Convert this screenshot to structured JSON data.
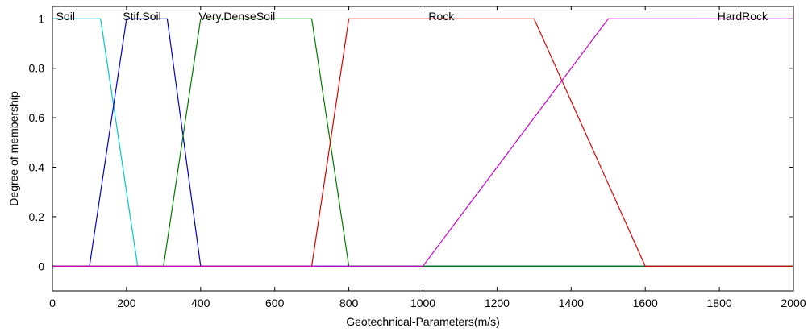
{
  "chart_data": {
    "type": "line",
    "title": "",
    "xlabel": "Geotechnical-Parameters(m/s)",
    "ylabel": "Degree of membership",
    "xlim": [
      0,
      2000
    ],
    "ylim": [
      -0.1,
      1.05
    ],
    "xticks": [
      0,
      200,
      400,
      600,
      800,
      1000,
      1200,
      1400,
      1600,
      1800,
      2000
    ],
    "yticks": [
      0,
      0.2,
      0.4,
      0.6,
      0.8,
      1
    ],
    "grid": false,
    "series": [
      {
        "name": "Soil",
        "color": "#00c8c8",
        "label_x": 10,
        "points": [
          [
            0,
            1
          ],
          [
            130,
            1
          ],
          [
            230,
            0
          ],
          [
            2000,
            0
          ]
        ]
      },
      {
        "name": "Stif.Soil",
        "color": "#0000cc",
        "label_x": 190,
        "points": [
          [
            0,
            0
          ],
          [
            100,
            0
          ],
          [
            200,
            1
          ],
          [
            310,
            1
          ],
          [
            400,
            0
          ],
          [
            2000,
            0
          ]
        ]
      },
      {
        "name": "Very.DenseSoil",
        "color": "#007a00",
        "label_x": 395,
        "points": [
          [
            0,
            0
          ],
          [
            300,
            0
          ],
          [
            400,
            1
          ],
          [
            700,
            1
          ],
          [
            800,
            0
          ],
          [
            2000,
            0
          ]
        ]
      },
      {
        "name": "Rock",
        "color": "#e00000",
        "label_x": 1015,
        "points": [
          [
            0,
            0
          ],
          [
            700,
            0
          ],
          [
            800,
            1
          ],
          [
            1300,
            1
          ],
          [
            1600,
            0
          ],
          [
            2000,
            0
          ]
        ]
      },
      {
        "name": "HardRock",
        "color": "#cc00cc",
        "label_x": 1795,
        "points": [
          [
            0,
            0
          ],
          [
            1000,
            0
          ],
          [
            1500,
            1
          ],
          [
            2000,
            1
          ]
        ]
      }
    ]
  }
}
